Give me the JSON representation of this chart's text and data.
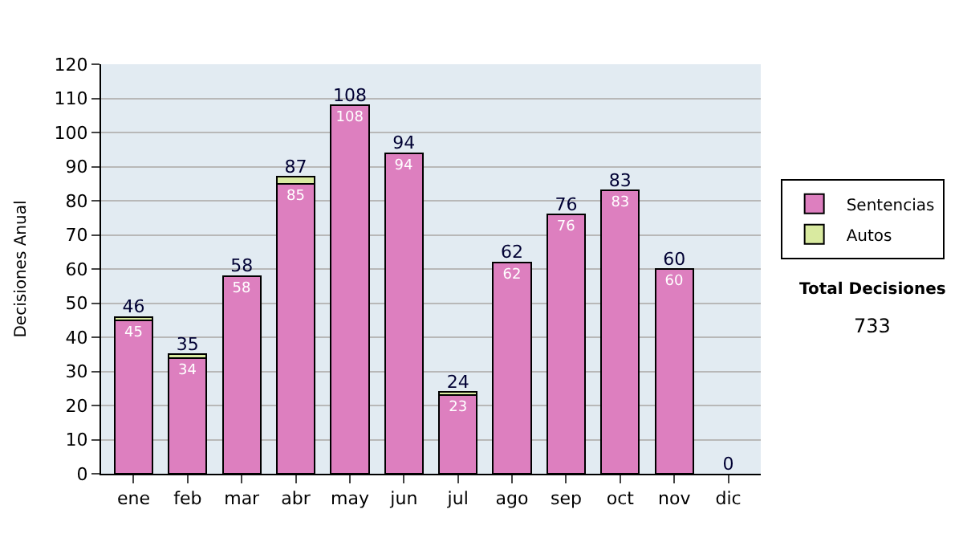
{
  "chart_data": {
    "type": "bar",
    "stacked": true,
    "ylabel": "Decisiones Anual",
    "categories": [
      "ene",
      "feb",
      "mar",
      "abr",
      "may",
      "jun",
      "jul",
      "ago",
      "sep",
      "oct",
      "nov",
      "dic"
    ],
    "series": [
      {
        "name": "Sentencias",
        "color": "#dd7fbf",
        "values": [
          45,
          34,
          58,
          85,
          108,
          94,
          23,
          62,
          76,
          83,
          60,
          0
        ],
        "value_labels": [
          "45",
          "34",
          "58",
          "85",
          "108",
          "94",
          "23",
          "62",
          "76",
          "83",
          "60",
          null
        ]
      },
      {
        "name": "Autos",
        "color": "#d9eaa0",
        "values": [
          1,
          1,
          0,
          2,
          0,
          0,
          1,
          0,
          0,
          0,
          0,
          0
        ]
      }
    ],
    "totals": [
      "46",
      "35",
      "58",
      "87",
      "108",
      "94",
      "24",
      "62",
      "76",
      "83",
      "60",
      "0"
    ],
    "ylim": [
      0,
      120
    ],
    "yticks": [
      0,
      10,
      20,
      30,
      40,
      50,
      60,
      70,
      80,
      90,
      100,
      110,
      120
    ],
    "grid": "y",
    "legend": "right",
    "annotations": [
      "Total Decisiones",
      "733"
    ]
  }
}
